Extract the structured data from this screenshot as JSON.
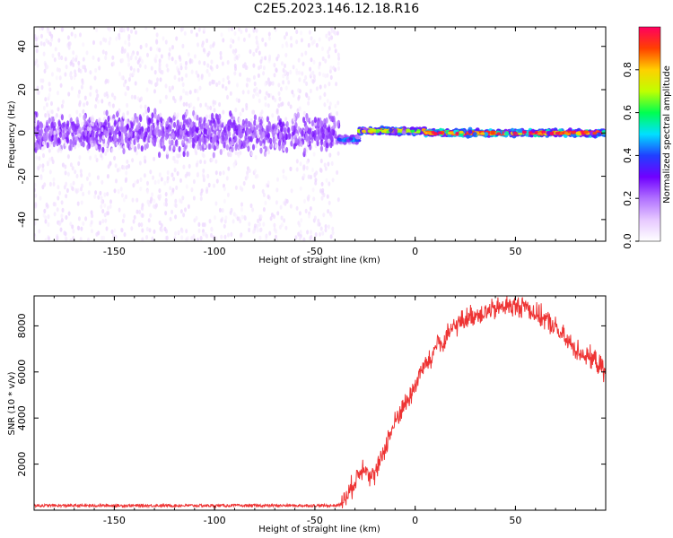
{
  "title": "C2E5.2023.146.12.18.R16",
  "colors": {
    "snr_line": "#ee3333",
    "axes": "#000000",
    "colormap": [
      "#ffffff",
      "#e6c8ff",
      "#b070ff",
      "#7000ff",
      "#2040ff",
      "#00e0ff",
      "#00ff50",
      "#c0ff00",
      "#ffd000",
      "#ff4000",
      "#ff0060"
    ]
  },
  "chart_data": [
    {
      "type": "heatmap",
      "xlabel": "Height of straight line (km)",
      "ylabel": "Frequency (Hz)",
      "xlim": [
        -190,
        95
      ],
      "ylim": [
        -50,
        49
      ],
      "xticks": [
        -150,
        -100,
        -50,
        0,
        50
      ],
      "yticks": [
        -40,
        -20,
        0,
        20,
        40
      ],
      "colorbar": {
        "label": "Normalized spectral amplitude",
        "range": [
          0.0,
          1.0
        ],
        "ticks": [
          0.0,
          0.2,
          0.4,
          0.6,
          0.8
        ]
      },
      "regions": [
        {
          "x_range": [
            -190,
            -38
          ],
          "description_level": "noise",
          "center_frequency": 0,
          "core_spread_hz": 8,
          "amplitude": 0.15
        },
        {
          "x_range": [
            -38,
            -28
          ],
          "center_frequency": -3,
          "core_spread_hz": 2,
          "amplitude": 0.45
        },
        {
          "x_range": [
            -28,
            5
          ],
          "center_frequency": 1,
          "core_spread_hz": 1.5,
          "amplitude": 0.8
        },
        {
          "x_range": [
            5,
            95
          ],
          "center_frequency": 0,
          "core_spread_hz": 1.5,
          "amplitude": 0.95
        }
      ]
    },
    {
      "type": "line",
      "xlabel": "Height of straight line (km)",
      "ylabel": "SNR (10 * v/v)",
      "xlim": [
        -190,
        95
      ],
      "ylim": [
        0,
        9300
      ],
      "xticks": [
        -150,
        -100,
        -50,
        0,
        50
      ],
      "yticks": [
        2000,
        4000,
        6000,
        8000
      ],
      "x": [
        -190,
        -180,
        -170,
        -160,
        -150,
        -140,
        -130,
        -120,
        -110,
        -100,
        -90,
        -80,
        -70,
        -60,
        -50,
        -40,
        -37,
        -34,
        -31,
        -28,
        -25,
        -22,
        -19,
        -16,
        -13,
        -10,
        -7,
        -4,
        -1,
        2,
        5,
        8,
        11,
        14,
        17,
        20,
        25,
        30,
        35,
        40,
        45,
        50,
        55,
        60,
        65,
        70,
        75,
        80,
        85,
        90,
        95
      ],
      "y": [
        200,
        200,
        200,
        200,
        200,
        200,
        200,
        200,
        200,
        200,
        200,
        200,
        200,
        200,
        200,
        200,
        250,
        600,
        1100,
        1600,
        2000,
        1400,
        1700,
        2500,
        3200,
        3800,
        4400,
        4700,
        5200,
        5900,
        6300,
        6500,
        7400,
        7100,
        7700,
        8000,
        8300,
        8500,
        8600,
        8700,
        8900,
        8800,
        8900,
        8500,
        8300,
        7900,
        7400,
        7000,
        6700,
        6500,
        5900
      ],
      "noise_amplitude": 300
    }
  ]
}
